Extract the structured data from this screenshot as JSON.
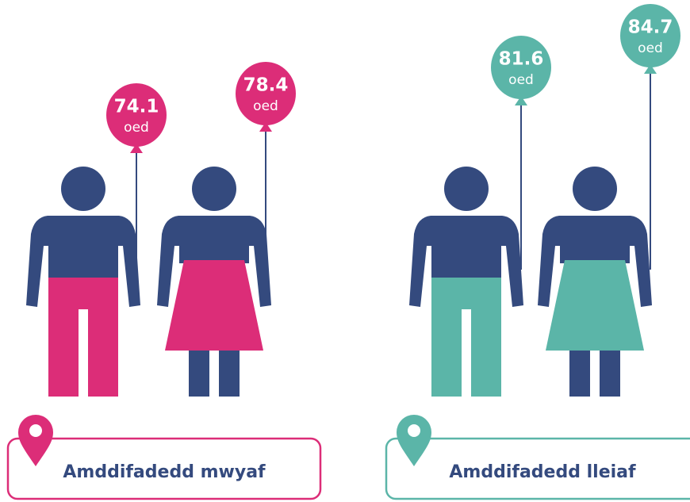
{
  "groups": [
    {
      "label": "Amddifadedd mwyaf",
      "color": "#dc2d78",
      "people": [
        {
          "value": 74.1,
          "unit": "oed"
        },
        {
          "value": 78.4,
          "unit": "oed"
        }
      ]
    },
    {
      "label": "Amddifadedd lleiaf",
      "color": "#5bb5a8",
      "people": [
        {
          "value": 81.6,
          "unit": "oed"
        },
        {
          "value": 84.7,
          "unit": "oed"
        }
      ]
    }
  ]
}
